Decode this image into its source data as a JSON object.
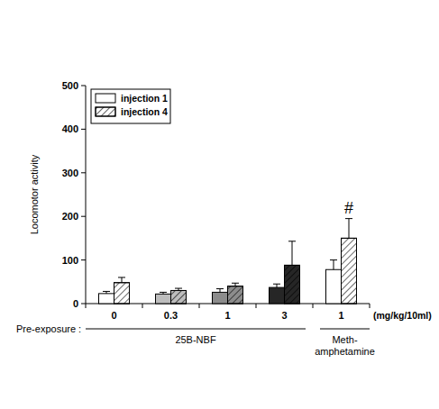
{
  "chart_data": {
    "type": "bar",
    "y_label": "Locomotor activity",
    "x_label": "Pre-exposure :",
    "unit_label": "(mg/kg/10ml)",
    "categories": [
      "0",
      "0.3",
      "1",
      "3",
      "1"
    ],
    "groups": [
      {
        "label": [
          "25B-NBF"
        ],
        "count": 4
      },
      {
        "label": [
          "Meth-",
          "amphetamine"
        ],
        "count": 1
      }
    ],
    "series": [
      {
        "name": "injection 1",
        "colors": [
          "#ffffff",
          "#bdbdbd",
          "#8c8c8c",
          "#262626",
          "#ffffff"
        ],
        "values": [
          23,
          22,
          26,
          37,
          78
        ],
        "errors": [
          5,
          4,
          8,
          8,
          22
        ]
      },
      {
        "name": "injection 4",
        "colors": [
          "#ffffff",
          "#bdbdbd",
          "#8c8c8c",
          "#262626",
          "#ffffff"
        ],
        "values": [
          48,
          30,
          40,
          88,
          150
        ],
        "errors": [
          12,
          5,
          7,
          55,
          45
        ]
      }
    ],
    "annotations": [
      {
        "text": "#",
        "series": 1,
        "index": 4
      }
    ],
    "ylim": [
      0,
      500
    ],
    "yticks": [
      0,
      100,
      200,
      300,
      400,
      500
    ],
    "legend": "upper left",
    "grid": false
  }
}
